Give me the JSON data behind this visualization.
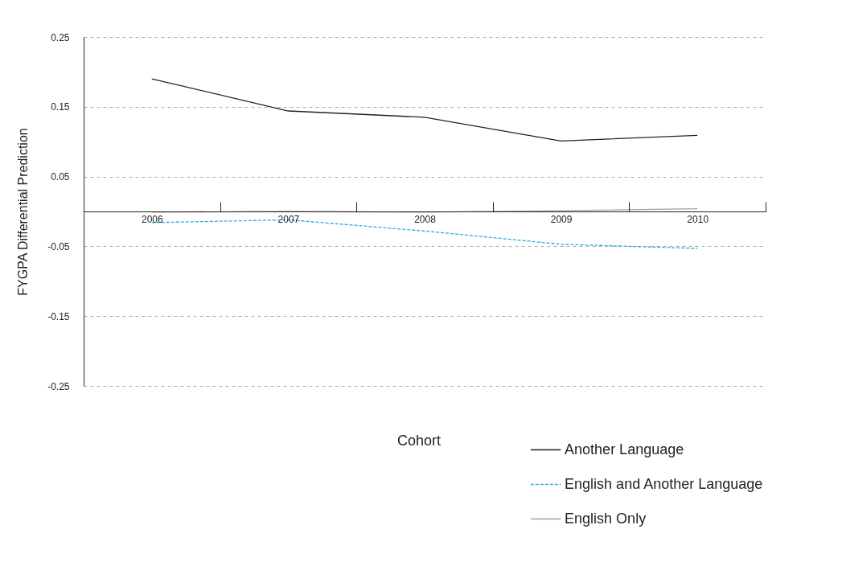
{
  "chart_data": {
    "type": "line",
    "ylabel": "FYGPA Differential Prediction",
    "legend_title": "Cohort",
    "categories": [
      "2006",
      "2007",
      "2008",
      "2009",
      "2010"
    ],
    "series": [
      {
        "name": "Another Language",
        "color": "#222222",
        "line_style": "solid",
        "values": [
          0.19,
          0.144,
          0.135,
          0.101,
          0.109
        ]
      },
      {
        "name": "English and Another Language",
        "color": "#29abe2",
        "line_style": "dashed",
        "values": [
          -0.016,
          -0.012,
          -0.028,
          -0.047,
          -0.053
        ]
      },
      {
        "name": "English Only",
        "color": "#a0a0a0",
        "line_style": "solid",
        "values": [
          -0.001,
          0.0,
          -0.001,
          0.001,
          0.004
        ]
      }
    ],
    "ylim": [
      -0.25,
      0.25
    ],
    "yticks": [
      -0.25,
      -0.15,
      -0.05,
      0.05,
      0.15,
      0.25
    ],
    "grid": "y",
    "legend": "bottom",
    "marker": "none"
  }
}
